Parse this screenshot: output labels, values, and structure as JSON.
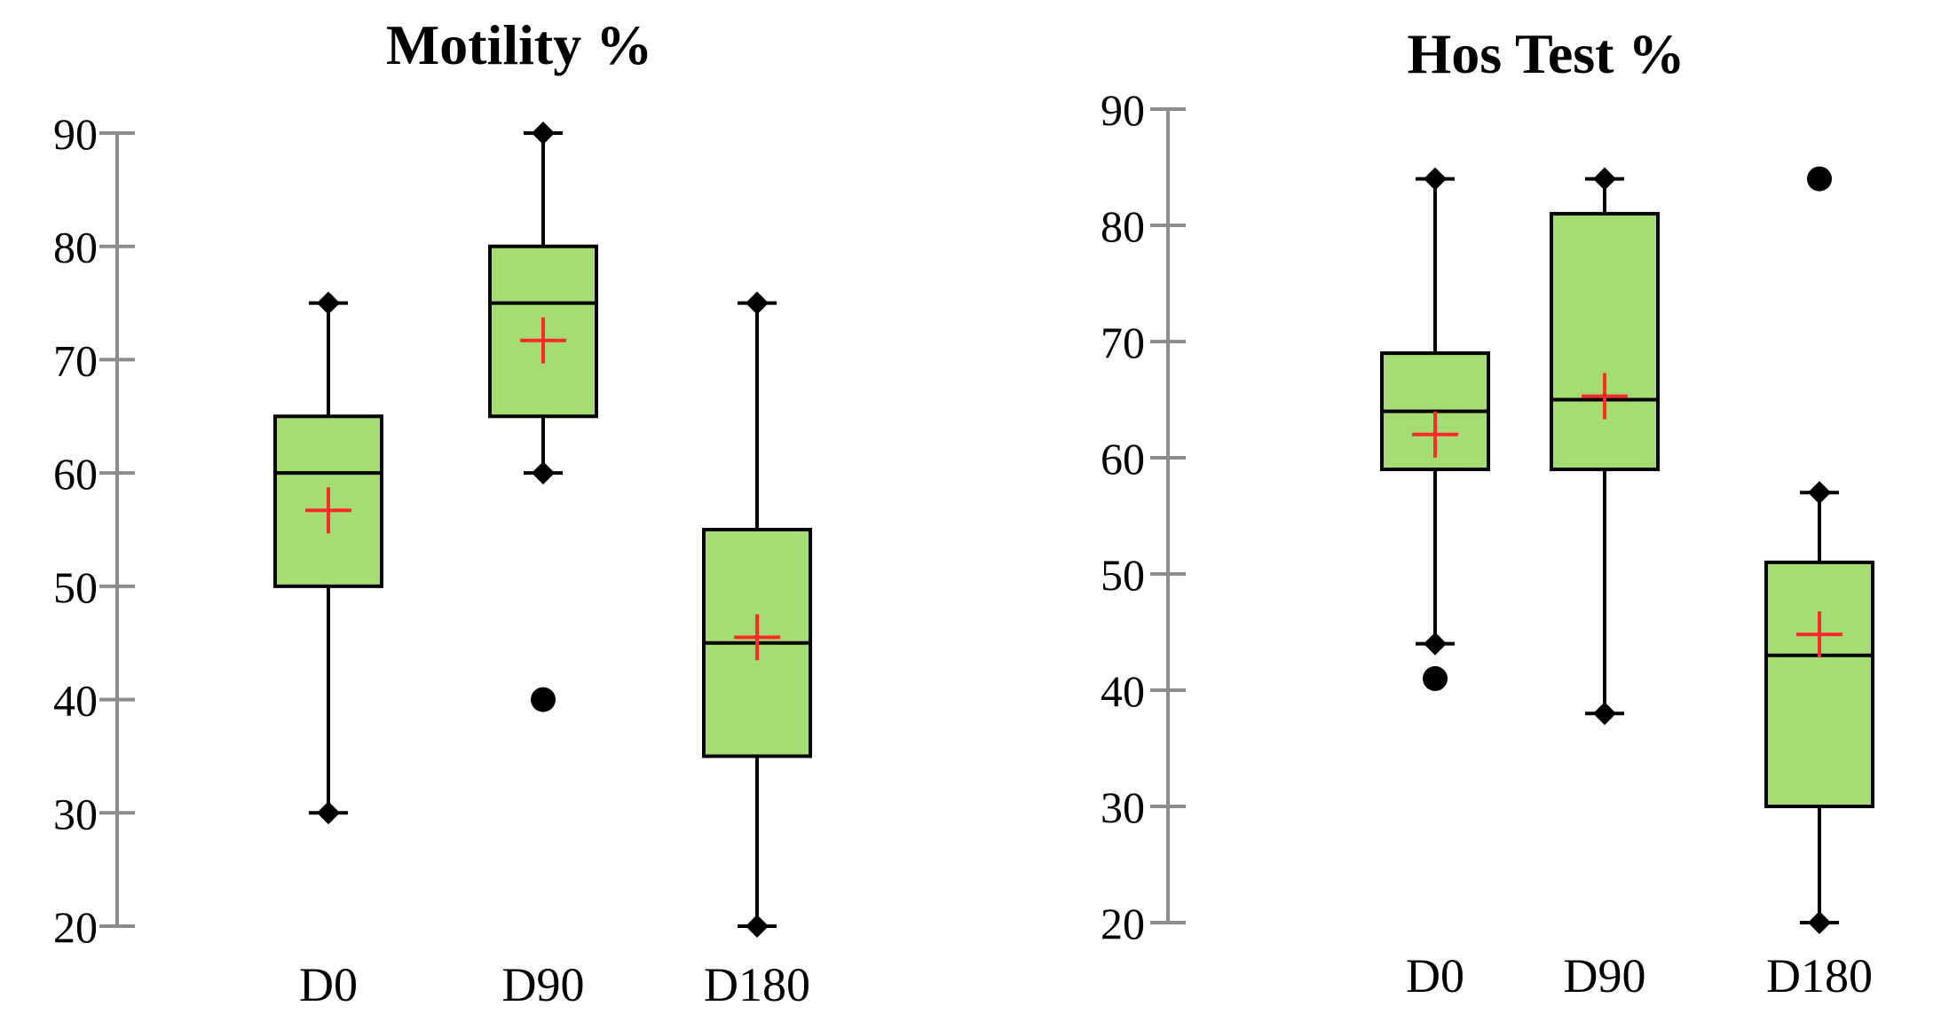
{
  "colors": {
    "box_fill": "#a6dc74",
    "box_stroke": "#000000",
    "mean_marker": "#ff2a2a",
    "axis": "#8c8c8c",
    "text": "#000000"
  },
  "chart_data": [
    {
      "type": "box",
      "title": "Motility %",
      "xlabel": "",
      "ylabel": "",
      "ylim": [
        20,
        90
      ],
      "y_ticks": [
        20,
        30,
        40,
        50,
        60,
        70,
        80,
        90
      ],
      "tick_labels": [
        "20",
        "30",
        "40",
        "50",
        "60",
        "70",
        "80",
        "90"
      ],
      "categories": [
        "D0",
        "D90",
        "D180"
      ],
      "boxes": [
        {
          "label": "D0",
          "min": 30,
          "q1": 50,
          "median": 60,
          "q3": 65,
          "max": 75,
          "mean": 56.7,
          "outliers": []
        },
        {
          "label": "D90",
          "min": 60,
          "q1": 65,
          "median": 75,
          "q3": 80,
          "max": 90,
          "mean": 71.7,
          "outliers": [
            40
          ]
        },
        {
          "label": "D180",
          "min": 20,
          "q1": 35,
          "median": 45,
          "q3": 55,
          "max": 75,
          "mean": 45.5,
          "outliers": []
        }
      ]
    },
    {
      "type": "box",
      "title": "Hos Test %",
      "xlabel": "",
      "ylabel": "",
      "ylim": [
        20,
        90
      ],
      "y_ticks": [
        20,
        30,
        40,
        50,
        60,
        70,
        80,
        90
      ],
      "tick_labels": [
        "20",
        "30",
        "40",
        "50",
        "60",
        "70",
        "80",
        "90"
      ],
      "categories": [
        "D0",
        "D90",
        "D180"
      ],
      "boxes": [
        {
          "label": "D0",
          "min": 44,
          "q1": 59,
          "median": 64,
          "q3": 69,
          "max": 84,
          "mean": 62,
          "outliers": [
            41
          ]
        },
        {
          "label": "D90",
          "min": 38,
          "q1": 59,
          "median": 65,
          "q3": 81,
          "max": 84,
          "mean": 65.3,
          "outliers": []
        },
        {
          "label": "D180",
          "min": 20,
          "q1": 30,
          "median": 43,
          "q3": 51,
          "max": 57,
          "mean": 44.8,
          "outliers": [
            84
          ]
        }
      ]
    }
  ]
}
